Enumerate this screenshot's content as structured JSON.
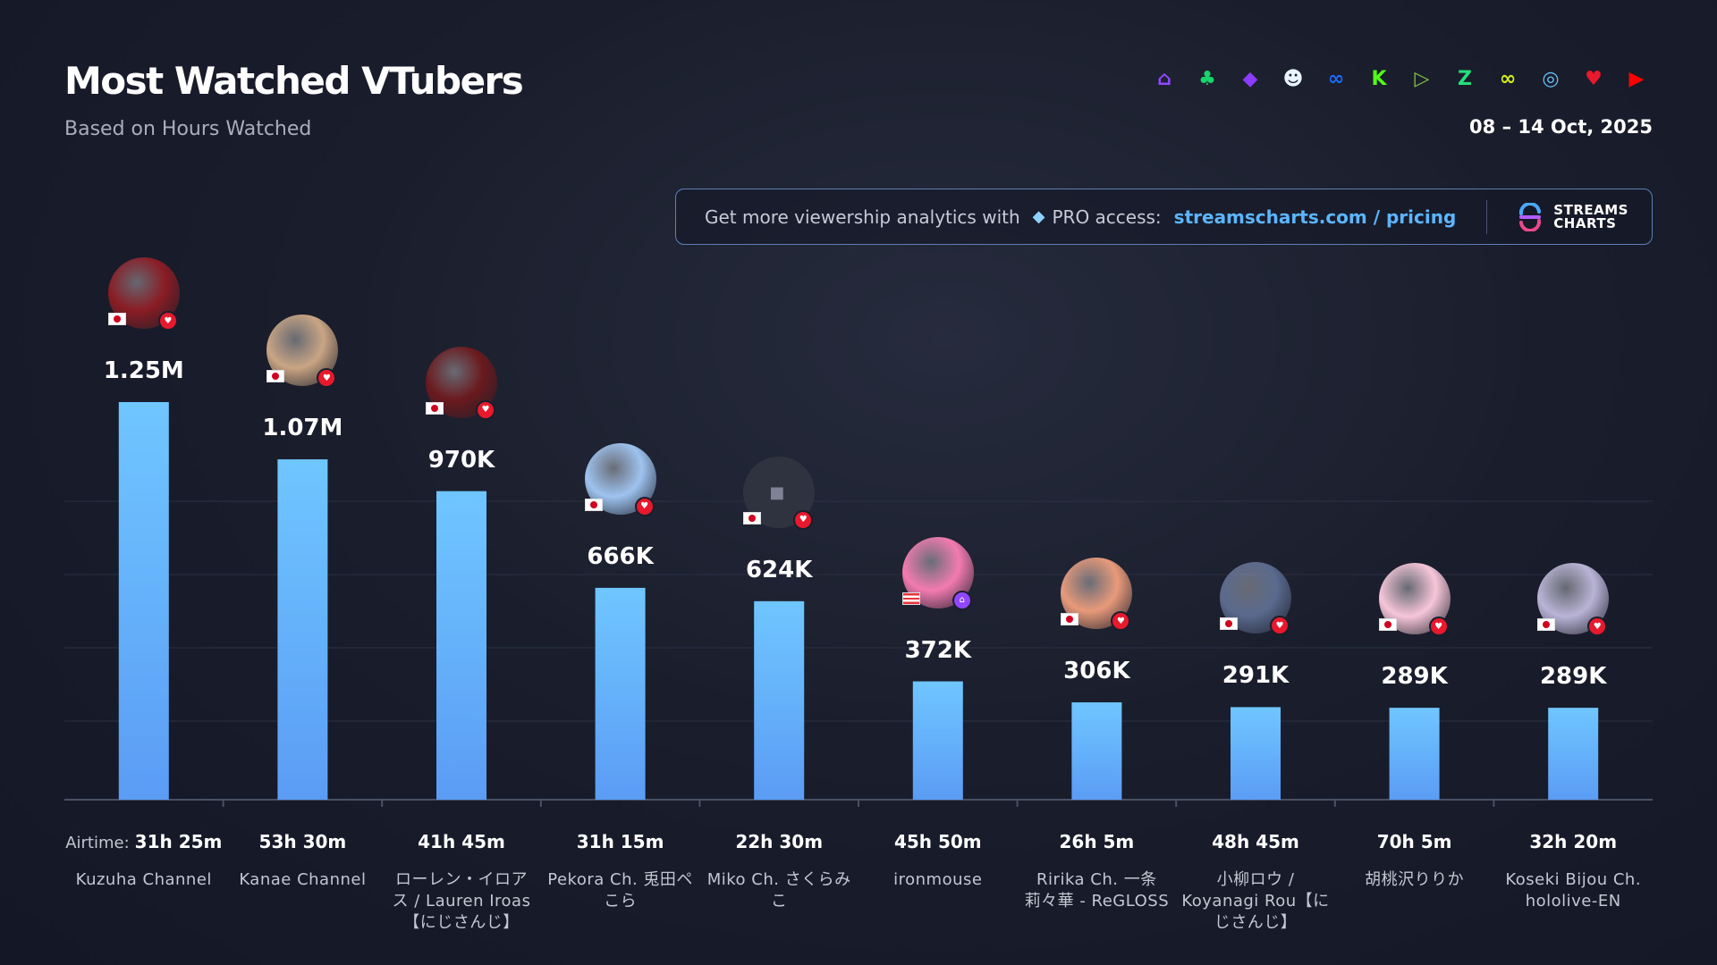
{
  "header": {
    "title": "Most Watched VTubers",
    "subtitle": "Based on Hours Watched",
    "date_range": "08 – 14 Oct, 2025"
  },
  "platforms": [
    {
      "name": "twitch-icon",
      "color": "#9146ff",
      "glyph": "⌂"
    },
    {
      "name": "trovo-icon",
      "color": "#19d66b",
      "glyph": "♣"
    },
    {
      "name": "kick-like-icon",
      "color": "#8c3cff",
      "glyph": "◆"
    },
    {
      "name": "bigo-icon",
      "color": "#e8f4ff",
      "glyph": "☻"
    },
    {
      "name": "vk-play-icon",
      "color": "#1a6dff",
      "glyph": "∞"
    },
    {
      "name": "kick-icon",
      "color": "#53fc18",
      "glyph": "K"
    },
    {
      "name": "rumble-icon",
      "color": "#85c742",
      "glyph": "▷"
    },
    {
      "name": "zoom-like-icon",
      "color": "#24e07a",
      "glyph": "Z"
    },
    {
      "name": "infinity-icon",
      "color": "#d7ef1f",
      "glyph": "∞"
    },
    {
      "name": "steam-icon",
      "color": "#66c0f4",
      "glyph": "◎"
    },
    {
      "name": "heart-icon",
      "color": "#e8192c",
      "glyph": "♥"
    },
    {
      "name": "youtube-icon",
      "color": "#ff0000",
      "glyph": "▶"
    }
  ],
  "promo": {
    "text": "Get more viewership analytics with",
    "pro": "PRO access:",
    "link": "streamscharts.com / pricing",
    "logo_line1": "STREAMS",
    "logo_line2": "CHARTS"
  },
  "airtime_prefix": "Airtime:",
  "chart_data": {
    "type": "bar",
    "title": "Most Watched VTubers",
    "subtitle": "Based on Hours Watched",
    "categories": [
      "Kuzuha Channel",
      "Kanae Channel",
      "ローレン・イロアス / Lauren Iroas【にじさんじ】",
      "Pekora Ch. 兎田ぺこら",
      "Miko Ch. さくらみこ",
      "ironmouse",
      "Ririka Ch. 一条莉々華 - ReGLOSS",
      "小柳ロウ / Koyanagi Rou【にじさんじ】",
      "胡桃沢りりか",
      "Koseki Bijou Ch. hololive-EN"
    ],
    "values": [
      1250000,
      1070000,
      970000,
      666000,
      624000,
      372000,
      306000,
      291000,
      289000,
      289000
    ],
    "value_labels": [
      "1.25M",
      "1.07M",
      "970K",
      "666K",
      "624K",
      "372K",
      "306K",
      "291K",
      "289K",
      "289K"
    ],
    "airtime": [
      "31h 25m",
      "53h 30m",
      "41h 45m",
      "31h 15m",
      "22h 30m",
      "45h 50m",
      "26h 5m",
      "48h 45m",
      "70h 5m",
      "32h 20m"
    ],
    "name_lines": [
      [
        "Kuzuha Channel"
      ],
      [
        "Kanae Channel"
      ],
      [
        "ローレン・イロア",
        "ス / Lauren Iroas",
        "【にじさんじ】"
      ],
      [
        "Pekora Ch. 兎田ペ",
        "こら"
      ],
      [
        "Miko Ch. さくらみ",
        "こ"
      ],
      [
        "ironmouse"
      ],
      [
        "Ririka Ch. 一条",
        "莉々華 - ReGLOSS"
      ],
      [
        "小柳ロウ /",
        "Koyanagi Rou【に",
        "じさんじ】"
      ],
      [
        "胡桃沢りりか"
      ],
      [
        "Koseki Bijou Ch.",
        "hololive-EN"
      ]
    ],
    "countries": [
      "jp",
      "jp",
      "jp",
      "jp",
      "jp",
      "pr",
      "jp",
      "jp",
      "jp",
      "jp"
    ],
    "platform": [
      "youtube",
      "youtube",
      "youtube",
      "youtube",
      "youtube",
      "twitch",
      "youtube",
      "youtube",
      "youtube",
      "youtube"
    ],
    "avatar_colors": [
      "#8a1c24",
      "#c9a584",
      "#6a1a1e",
      "#9ec3ef",
      "#2f3340",
      "#f27bb0",
      "#e89a7a",
      "#5a6a8e",
      "#f6c6d8",
      "#b9b4d6"
    ],
    "grid": true,
    "bar_color_top": "#6fc6ff",
    "bar_color_bottom": "#5b9cf5"
  }
}
